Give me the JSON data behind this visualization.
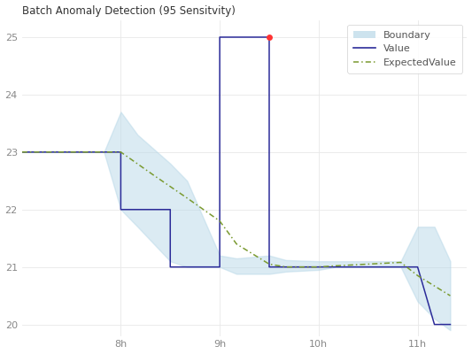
{
  "title": "Batch Anomaly Detection (95 Sensitvity)",
  "xlim": [
    7.0,
    11.5
  ],
  "ylim": [
    19.8,
    25.3
  ],
  "xticks": [
    8,
    9,
    10,
    11
  ],
  "xtick_labels": [
    "8h",
    "9h",
    "10h",
    "11h"
  ],
  "yticks": [
    20,
    21,
    22,
    23,
    24,
    25
  ],
  "value_x": [
    7.0,
    7.83,
    8.0,
    8.0,
    8.17,
    8.5,
    8.5,
    9.0,
    9.0,
    9.5,
    9.5,
    9.67,
    10.0,
    10.0,
    10.83,
    10.83,
    11.0,
    11.17,
    11.33
  ],
  "value_y": [
    23,
    23,
    23,
    22,
    22,
    22,
    21,
    21,
    25,
    25,
    21,
    21,
    21,
    21,
    21,
    21,
    21,
    20,
    20
  ],
  "expected_x": [
    7.0,
    7.83,
    8.0,
    8.33,
    8.67,
    9.0,
    9.17,
    9.5,
    9.67,
    10.0,
    10.17,
    10.5,
    10.83,
    11.0,
    11.33
  ],
  "expected_y": [
    23,
    23,
    23,
    22.6,
    22.2,
    21.8,
    21.4,
    21.05,
    21.0,
    21.0,
    21.02,
    21.05,
    21.08,
    20.85,
    20.5
  ],
  "upper_x": [
    7.0,
    7.83,
    8.0,
    8.17,
    8.5,
    8.67,
    9.0,
    9.17,
    9.5,
    9.67,
    10.0,
    10.17,
    10.5,
    10.67,
    10.83,
    11.0,
    11.17,
    11.33
  ],
  "upper_y": [
    23,
    23,
    23.7,
    23.3,
    22.8,
    22.5,
    21.2,
    21.15,
    21.2,
    21.12,
    21.1,
    21.1,
    21.1,
    21.1,
    21.1,
    21.7,
    21.7,
    21.1
  ],
  "lower_y": [
    23,
    23,
    22,
    21.7,
    21.1,
    21.0,
    21.0,
    20.88,
    20.88,
    20.92,
    20.95,
    21.0,
    21.0,
    21.0,
    21.0,
    20.4,
    20.1,
    19.9
  ],
  "anomaly_x": [
    9.5
  ],
  "anomaly_y": [
    25
  ],
  "value_color": "#2b2b99",
  "expected_color": "#7a9a30",
  "band_color": "#b8d8e8",
  "band_alpha": 0.5,
  "anomaly_color": "#ff3333",
  "line_width": 1.1,
  "grid_color": "#e8e8e8",
  "figsize": [
    5.33,
    4.0
  ],
  "dpi": 100
}
